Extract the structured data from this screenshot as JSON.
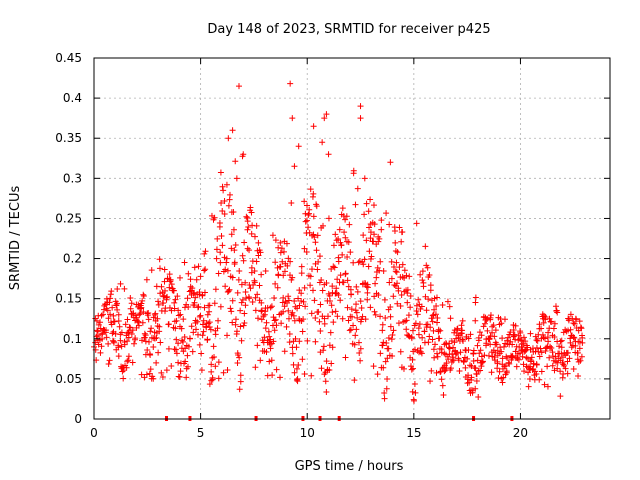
{
  "chart_data": {
    "type": "scatter",
    "title": "Day 148 of 2023, SRMTID for receiver p425",
    "xlabel": "GPS time / hours",
    "ylabel": "SRMTID / TECUs",
    "xlim": [
      0,
      24.2
    ],
    "ylim": [
      0,
      0.45
    ],
    "xticks": [
      0,
      5,
      10,
      15,
      20
    ],
    "yticks": [
      0,
      0.05,
      0.1,
      0.15,
      0.2,
      0.25,
      0.3,
      0.35,
      0.4,
      0.45
    ],
    "ytick_labels": [
      "0",
      "0.05",
      "0.1",
      "0.15",
      "0.2",
      "0.25",
      "0.3",
      "0.35",
      "0.4",
      "0.45"
    ],
    "grid": true,
    "marker": "+",
    "color": "#ff0000",
    "series": [
      {
        "name": "SRMTID",
        "envelope": [
          {
            "x": 0.0,
            "lo": 0.07,
            "hi": 0.13
          },
          {
            "x": 1.0,
            "lo": 0.06,
            "hi": 0.18
          },
          {
            "x": 2.0,
            "lo": 0.05,
            "hi": 0.16
          },
          {
            "x": 3.0,
            "lo": 0.05,
            "hi": 0.22
          },
          {
            "x": 4.0,
            "lo": 0.05,
            "hi": 0.2
          },
          {
            "x": 5.0,
            "lo": 0.05,
            "hi": 0.2
          },
          {
            "x": 6.0,
            "lo": 0.05,
            "hi": 0.32
          },
          {
            "x": 7.0,
            "lo": 0.06,
            "hi": 0.33
          },
          {
            "x": 8.0,
            "lo": 0.05,
            "hi": 0.22
          },
          {
            "x": 9.0,
            "lo": 0.03,
            "hi": 0.26
          },
          {
            "x": 10.0,
            "lo": 0.05,
            "hi": 0.32
          },
          {
            "x": 11.0,
            "lo": 0.05,
            "hi": 0.26
          },
          {
            "x": 12.0,
            "lo": 0.05,
            "hi": 0.32
          },
          {
            "x": 13.0,
            "lo": 0.05,
            "hi": 0.3
          },
          {
            "x": 14.0,
            "lo": 0.04,
            "hi": 0.25
          },
          {
            "x": 15.0,
            "lo": 0.04,
            "hi": 0.26
          },
          {
            "x": 16.0,
            "lo": 0.04,
            "hi": 0.18
          },
          {
            "x": 17.0,
            "lo": 0.03,
            "hi": 0.13
          },
          {
            "x": 18.0,
            "lo": 0.02,
            "hi": 0.16
          },
          {
            "x": 19.0,
            "lo": 0.05,
            "hi": 0.13
          },
          {
            "x": 20.0,
            "lo": 0.04,
            "hi": 0.12
          },
          {
            "x": 21.0,
            "lo": 0.04,
            "hi": 0.14
          },
          {
            "x": 22.0,
            "lo": 0.04,
            "hi": 0.15
          },
          {
            "x": 23.0,
            "lo": 0.05,
            "hi": 0.13
          }
        ],
        "x_range": [
          0.0,
          22.9
        ],
        "outliers": [
          {
            "x": 6.3,
            "y": 0.35
          },
          {
            "x": 6.5,
            "y": 0.36
          },
          {
            "x": 6.7,
            "y": 0.3
          },
          {
            "x": 6.8,
            "y": 0.415
          },
          {
            "x": 7.0,
            "y": 0.33
          },
          {
            "x": 9.2,
            "y": 0.418
          },
          {
            "x": 9.3,
            "y": 0.375
          },
          {
            "x": 9.4,
            "y": 0.315
          },
          {
            "x": 9.6,
            "y": 0.34
          },
          {
            "x": 10.3,
            "y": 0.365
          },
          {
            "x": 10.7,
            "y": 0.345
          },
          {
            "x": 10.8,
            "y": 0.375
          },
          {
            "x": 10.9,
            "y": 0.38
          },
          {
            "x": 11.0,
            "y": 0.33
          },
          {
            "x": 12.5,
            "y": 0.39
          },
          {
            "x": 12.5,
            "y": 0.375
          },
          {
            "x": 12.7,
            "y": 0.3
          },
          {
            "x": 13.9,
            "y": 0.32
          }
        ],
        "axis_markers_x": [
          3.4,
          4.5,
          7.6,
          9.8,
          10.6,
          11.5,
          17.8,
          19.6
        ]
      }
    ]
  }
}
